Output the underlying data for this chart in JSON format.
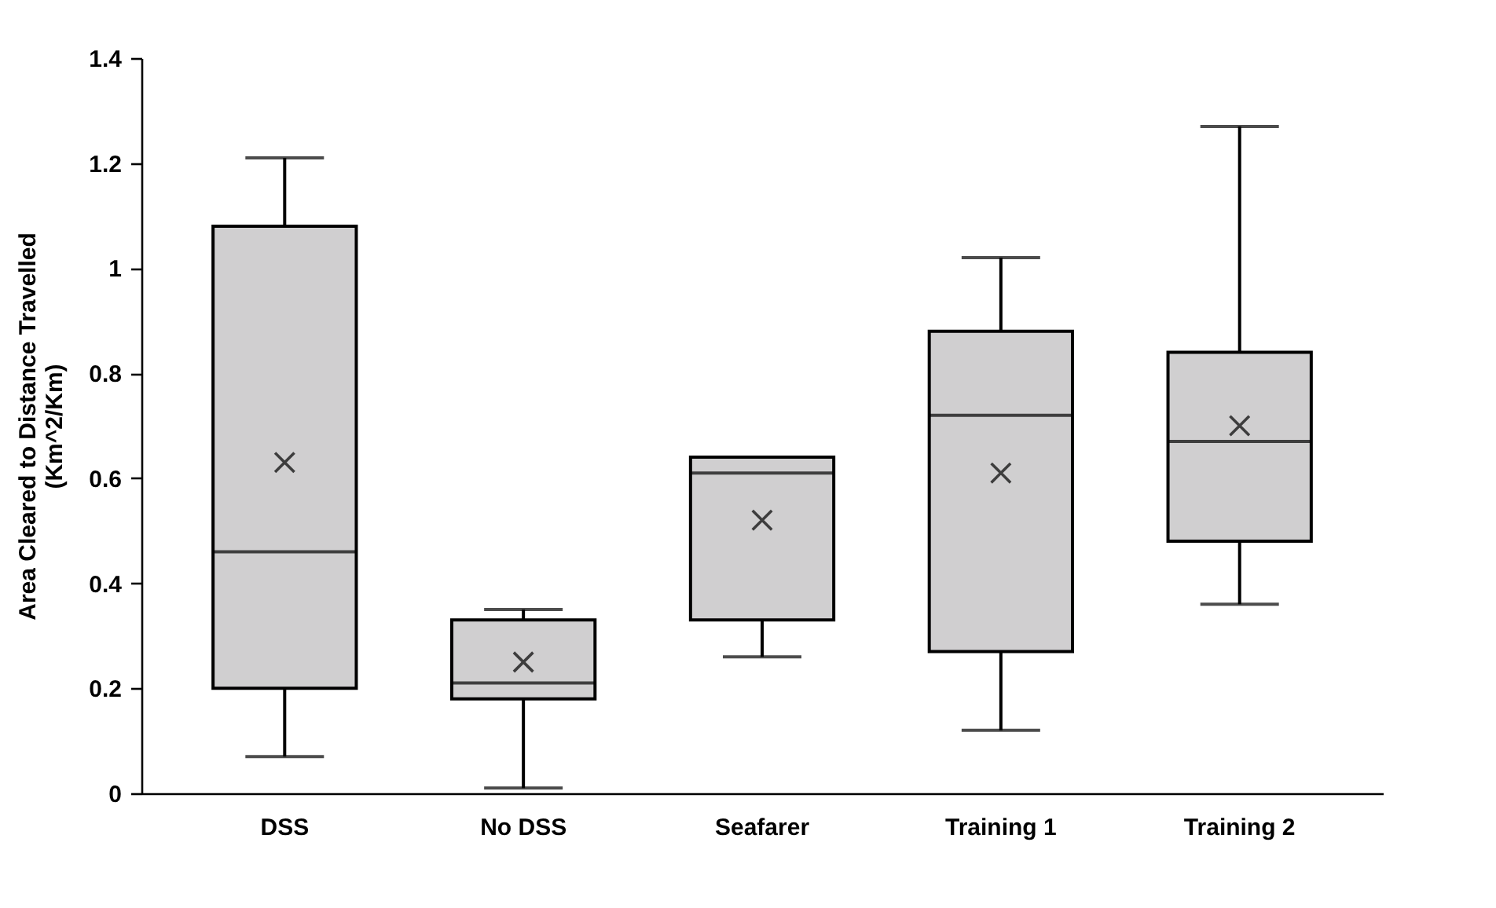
{
  "chart_data": {
    "type": "box",
    "ylabel": "Area Cleared to Distance Travelled\n(Km^2/Km)",
    "categories": [
      "DSS",
      "No DSS",
      "Seafarer",
      "Training 1",
      "Training 2"
    ],
    "color": "#d0cfd0",
    "marker": "cross",
    "boxes": [
      {
        "low": 0.07,
        "q1": 0.2,
        "median": 0.46,
        "q3": 1.08,
        "high": 1.21,
        "mean": 0.63
      },
      {
        "low": 0.01,
        "q1": 0.18,
        "median": 0.21,
        "q3": 0.33,
        "high": 0.35,
        "mean": 0.25
      },
      {
        "low": 0.26,
        "q1": 0.33,
        "median": 0.61,
        "q3": 0.64,
        "high": 0.64,
        "mean": 0.52
      },
      {
        "low": 0.12,
        "q1": 0.27,
        "median": 0.72,
        "q3": 0.88,
        "high": 1.02,
        "mean": 0.61
      },
      {
        "low": 0.36,
        "q1": 0.48,
        "median": 0.67,
        "q3": 0.84,
        "high": 1.27,
        "mean": 0.7
      }
    ],
    "ylim": [
      0,
      1.4
    ],
    "yticks": [
      0,
      0.2,
      0.4,
      0.6,
      0.8,
      1,
      1.2,
      1.4
    ]
  }
}
